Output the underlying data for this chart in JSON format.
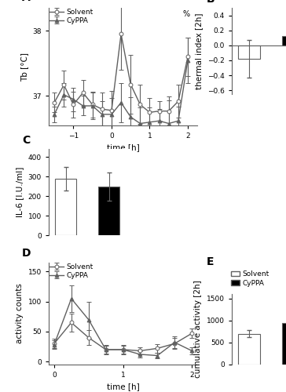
{
  "panel_A": {
    "title": "A",
    "xlabel": "time [h]",
    "ylabel": "Tb [°C]",
    "xlim": [
      -1.65,
      2.25
    ],
    "ylim": [
      36.55,
      38.35
    ],
    "yticks": [
      37,
      38
    ],
    "xticks": [
      -1,
      0,
      1,
      2
    ],
    "solvent_x": [
      -1.5,
      -1.25,
      -1.0,
      -0.75,
      -0.5,
      -0.25,
      0.0,
      0.25,
      0.5,
      0.75,
      1.0,
      1.25,
      1.5,
      1.75,
      2.0
    ],
    "solvent_y": [
      36.9,
      37.17,
      36.87,
      37.05,
      36.87,
      36.8,
      36.78,
      37.95,
      37.18,
      36.87,
      36.75,
      36.77,
      36.77,
      36.92,
      37.6
    ],
    "solvent_err": [
      0.15,
      0.22,
      0.2,
      0.2,
      0.2,
      0.25,
      0.3,
      0.55,
      0.45,
      0.3,
      0.22,
      0.15,
      0.22,
      0.25,
      0.3
    ],
    "cyppa_x": [
      -1.5,
      -1.25,
      -1.0,
      -0.75,
      -0.5,
      -0.25,
      0.0,
      0.25,
      0.5,
      0.75,
      1.0,
      1.25,
      1.5,
      1.75,
      2.0
    ],
    "cyppa_y": [
      36.72,
      37.02,
      36.95,
      36.85,
      36.85,
      36.72,
      36.72,
      36.9,
      36.68,
      36.58,
      36.6,
      36.62,
      36.58,
      36.62,
      37.55
    ],
    "cyppa_err": [
      0.12,
      0.18,
      0.18,
      0.15,
      0.2,
      0.2,
      0.25,
      0.3,
      0.3,
      0.25,
      0.22,
      0.18,
      0.35,
      0.22,
      0.35
    ],
    "percent_label": "%",
    "percent_x": 1.95,
    "percent_y": 38.22
  },
  "panel_B": {
    "title": "B",
    "ylabel": "thermal index [2h]",
    "ylim": [
      -0.65,
      0.5
    ],
    "yticks": [
      -0.6,
      -0.4,
      -0.2,
      0.0,
      0.2,
      0.4
    ],
    "solvent_val": -0.18,
    "solvent_err": 0.25,
    "cyppa_val": 0.12,
    "cyppa_err": 0.22,
    "bar_width": 0.5
  },
  "panel_C": {
    "title": "C",
    "ylabel": "IL-6 [I.U./ml]",
    "ylim": [
      0,
      440
    ],
    "yticks": [
      0,
      100,
      200,
      300,
      400
    ],
    "solvent_val": 290,
    "solvent_err": 60,
    "cyppa_val": 248,
    "cyppa_err": 72,
    "bar_width": 0.5
  },
  "panel_D": {
    "title": "D",
    "xlabel": "time [h]",
    "ylabel": "activity counts",
    "xlim": [
      -0.08,
      2.08
    ],
    "ylim": [
      -5,
      165
    ],
    "yticks": [
      0,
      50,
      100,
      150
    ],
    "xticks": [
      0,
      1,
      2
    ],
    "solvent_x": [
      0.0,
      0.25,
      0.5,
      0.75,
      1.0,
      1.25,
      1.5,
      1.75,
      2.0
    ],
    "solvent_y": [
      30,
      65,
      40,
      20,
      20,
      18,
      22,
      30,
      47
    ],
    "solvent_err": [
      8,
      15,
      12,
      7,
      7,
      6,
      7,
      9,
      8
    ],
    "cyppa_x": [
      0.0,
      0.25,
      0.5,
      0.75,
      1.0,
      1.25,
      1.5,
      1.75,
      2.0
    ],
    "cyppa_y": [
      28,
      105,
      70,
      20,
      20,
      12,
      10,
      32,
      18
    ],
    "cyppa_err": [
      7,
      22,
      30,
      8,
      8,
      5,
      5,
      10,
      6
    ]
  },
  "panel_E": {
    "title": "E",
    "ylabel": "cumulative activity [2h]",
    "ylim": [
      0,
      1600
    ],
    "yticks": [
      0,
      500,
      1000,
      1500
    ],
    "solvent_val": 700,
    "solvent_err": 85,
    "cyppa_val": 940,
    "cyppa_err": 100,
    "bar_width": 0.5,
    "legend_labels": [
      "Solvent",
      "CyPPA"
    ]
  },
  "gray": "#606060",
  "linewidth": 1.0,
  "markersize": 3.5,
  "capsize": 2.5,
  "elinewidth": 0.8
}
